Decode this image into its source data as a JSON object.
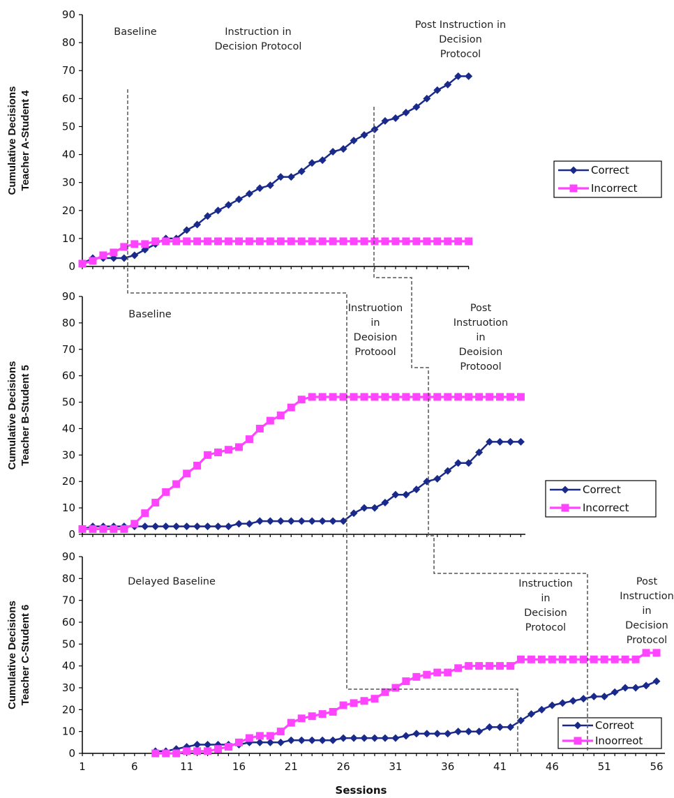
{
  "chart_data": [
    {
      "type": "line",
      "ylabel_lines": [
        "Cumulative Decisions",
        "Teacher A-Student 4"
      ],
      "ylim": [
        0,
        90
      ],
      "yticks": [
        0,
        10,
        20,
        30,
        40,
        50,
        60,
        70,
        80,
        90
      ],
      "phase_labels": [
        {
          "lines": [
            "Baseline"
          ]
        },
        {
          "lines": [
            "Instruction in",
            "Decision Protocol"
          ]
        },
        {
          "lines": [
            "Post Instruction in",
            "Decision",
            "Protocol"
          ]
        }
      ],
      "legend": [
        "Correct",
        "Incorrect"
      ],
      "series": [
        {
          "name": "Correct",
          "color": "#1a2a8a",
          "marker": "diamond",
          "x": [
            1,
            2,
            3,
            4,
            5,
            6,
            7,
            8,
            9,
            10,
            11,
            12,
            13,
            14,
            15,
            16,
            17,
            18,
            19,
            20,
            21,
            22,
            23,
            24,
            25,
            26,
            27,
            28,
            29,
            30,
            31,
            32,
            33,
            34,
            35,
            36,
            37,
            38
          ],
          "y": [
            1,
            3,
            3,
            3,
            3,
            4,
            6,
            8,
            10,
            10,
            13,
            15,
            18,
            20,
            22,
            24,
            26,
            28,
            29,
            32,
            32,
            34,
            37,
            38,
            41,
            42,
            45,
            47,
            49,
            52,
            53,
            55,
            57,
            60,
            63,
            65,
            68,
            68
          ]
        },
        {
          "name": "Incorrect",
          "color": "#ff44ff",
          "marker": "square",
          "x": [
            1,
            2,
            3,
            4,
            5,
            6,
            7,
            8,
            9,
            10,
            11,
            12,
            13,
            14,
            15,
            16,
            17,
            18,
            19,
            20,
            21,
            22,
            23,
            24,
            25,
            26,
            27,
            28,
            29,
            30,
            31,
            32,
            33,
            34,
            35,
            36,
            37,
            38
          ],
          "y": [
            1,
            2,
            4,
            5,
            7,
            8,
            8,
            9,
            9,
            9,
            9,
            9,
            9,
            9,
            9,
            9,
            9,
            9,
            9,
            9,
            9,
            9,
            9,
            9,
            9,
            9,
            9,
            9,
            9,
            9,
            9,
            9,
            9,
            9,
            9,
            9,
            9,
            9
          ]
        }
      ]
    },
    {
      "type": "line",
      "ylabel_lines": [
        "Cumulative Decisions",
        "Teacher B-Student 5"
      ],
      "ylim": [
        0,
        90
      ],
      "yticks": [
        0,
        10,
        20,
        30,
        40,
        50,
        60,
        70,
        80,
        90
      ],
      "phase_labels": [
        {
          "lines": [
            "Baseline"
          ]
        },
        {
          "lines": [
            "Instruotion",
            "in",
            "Deoision",
            "Protoool"
          ]
        },
        {
          "lines": [
            "Post",
            "Instruotion",
            "in",
            "Deoision",
            "Protoool"
          ]
        }
      ],
      "legend": [
        "Correct",
        "Incorrect"
      ],
      "series": [
        {
          "name": "Correct",
          "color": "#1a2a8a",
          "marker": "diamond",
          "x": [
            1,
            2,
            3,
            4,
            5,
            6,
            7,
            8,
            9,
            10,
            11,
            12,
            13,
            14,
            15,
            16,
            17,
            18,
            19,
            20,
            21,
            22,
            23,
            24,
            25,
            26,
            27,
            28,
            29,
            30,
            31,
            32,
            33,
            34,
            35,
            36,
            37,
            38,
            39,
            40,
            41,
            42,
            43
          ],
          "y": [
            2,
            3,
            3,
            3,
            3,
            3,
            3,
            3,
            3,
            3,
            3,
            3,
            3,
            3,
            3,
            4,
            4,
            5,
            5,
            5,
            5,
            5,
            5,
            5,
            5,
            5,
            8,
            10,
            10,
            12,
            15,
            15,
            17,
            20,
            21,
            24,
            27,
            27,
            31,
            35,
            35,
            35,
            35
          ]
        },
        {
          "name": "Incorrect",
          "color": "#ff44ff",
          "marker": "square",
          "x": [
            1,
            2,
            3,
            4,
            5,
            6,
            7,
            8,
            9,
            10,
            11,
            12,
            13,
            14,
            15,
            16,
            17,
            18,
            19,
            20,
            21,
            22,
            23,
            24,
            25,
            26,
            27,
            28,
            29,
            30,
            31,
            32,
            33,
            34,
            35,
            36,
            37,
            38,
            39,
            40,
            41,
            42,
            43
          ],
          "y": [
            2,
            2,
            2,
            2,
            2,
            4,
            8,
            12,
            16,
            19,
            23,
            26,
            30,
            31,
            32,
            33,
            36,
            40,
            43,
            45,
            48,
            51,
            52,
            52,
            52,
            52,
            52,
            52,
            52,
            52,
            52,
            52,
            52,
            52,
            52,
            52,
            52,
            52,
            52,
            52,
            52,
            52,
            52
          ]
        }
      ]
    },
    {
      "type": "line",
      "ylabel_lines": [
        "Cumulative Decisions",
        "Teacher C-Student 6"
      ],
      "ylim": [
        0,
        90
      ],
      "yticks": [
        0,
        10,
        20,
        30,
        40,
        50,
        60,
        70,
        80,
        90
      ],
      "xticks": [
        1,
        6,
        11,
        16,
        21,
        26,
        31,
        36,
        41,
        46,
        51,
        56
      ],
      "xlabel": "Sessions",
      "phase_labels": [
        {
          "lines": [
            "Delayed Baseline"
          ]
        },
        {
          "lines": [
            "Instruction",
            "in",
            "Decision",
            "Protocol"
          ]
        },
        {
          "lines": [
            "Post",
            "Instruction",
            "in",
            "Decision",
            "Protocol"
          ]
        }
      ],
      "legend": [
        "Correot",
        "Inoorreot"
      ],
      "series": [
        {
          "name": "Correot",
          "color": "#1a2a8a",
          "marker": "diamond",
          "x": [
            8,
            9,
            10,
            11,
            12,
            13,
            14,
            15,
            16,
            17,
            18,
            19,
            20,
            21,
            22,
            23,
            24,
            25,
            26,
            27,
            28,
            29,
            30,
            31,
            32,
            33,
            34,
            35,
            36,
            37,
            38,
            39,
            40,
            41,
            42,
            43,
            44,
            45,
            46,
            47,
            48,
            49,
            50,
            51,
            52,
            53,
            54,
            55,
            56
          ],
          "y": [
            1,
            1,
            2,
            3,
            4,
            4,
            4,
            4,
            4,
            5,
            5,
            5,
            5,
            6,
            6,
            6,
            6,
            6,
            7,
            7,
            7,
            7,
            7,
            7,
            8,
            9,
            9,
            9,
            9,
            10,
            10,
            10,
            12,
            12,
            12,
            15,
            18,
            20,
            22,
            23,
            24,
            25,
            26,
            26,
            28,
            30,
            30,
            31,
            33
          ]
        },
        {
          "name": "Inoorreot",
          "color": "#ff44ff",
          "marker": "square",
          "x": [
            8,
            9,
            10,
            11,
            12,
            13,
            14,
            15,
            16,
            17,
            18,
            19,
            20,
            21,
            22,
            23,
            24,
            25,
            26,
            27,
            28,
            29,
            30,
            31,
            32,
            33,
            34,
            35,
            36,
            37,
            38,
            39,
            40,
            41,
            42,
            43,
            44,
            45,
            46,
            47,
            48,
            49,
            50,
            51,
            52,
            53,
            54,
            55,
            56
          ],
          "y": [
            0,
            0,
            0,
            1,
            1,
            1,
            2,
            3,
            5,
            7,
            8,
            8,
            10,
            14,
            16,
            17,
            18,
            19,
            22,
            23,
            24,
            25,
            28,
            30,
            33,
            35,
            36,
            37,
            37,
            39,
            40,
            40,
            40,
            40,
            40,
            43,
            43,
            43,
            43,
            43,
            43,
            43,
            43,
            43,
            43,
            43,
            43,
            46,
            46
          ]
        }
      ]
    }
  ]
}
